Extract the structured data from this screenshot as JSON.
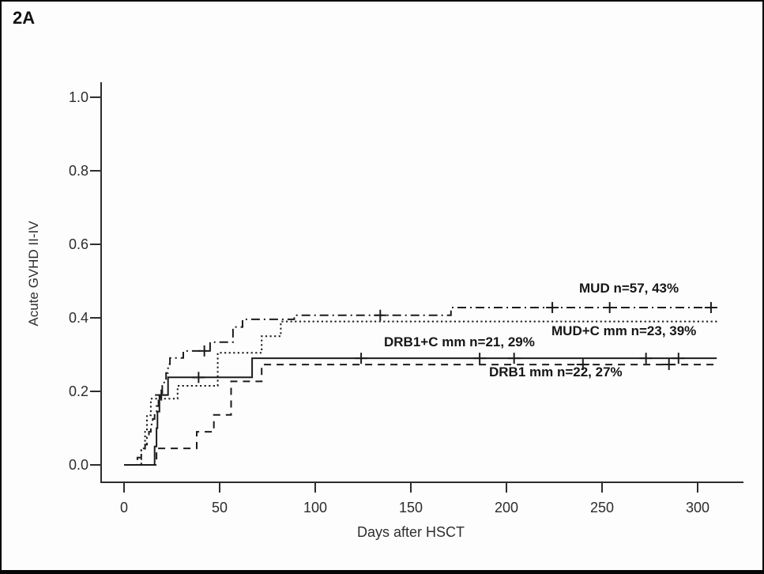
{
  "page": {
    "panel_label": "2A"
  },
  "chart_data": {
    "type": "line",
    "subtype": "kaplan-meier-cumulative-incidence",
    "title": "",
    "xlabel": "Days after HSCT",
    "ylabel": "Acute GVHD II-IV",
    "xlim": [
      0,
      313
    ],
    "ylim": [
      0.0,
      1.0
    ],
    "x_ticks": [
      0,
      50,
      100,
      150,
      200,
      250,
      300
    ],
    "x_tick_labels": [
      "0",
      "50",
      "100",
      "150",
      "200",
      "250",
      "300"
    ],
    "y_ticks": [
      0.0,
      0.2,
      0.4,
      0.6,
      0.8,
      1.0
    ],
    "y_tick_labels": [
      "0.0",
      "0.2",
      "0.4",
      "0.6",
      "0.8",
      "1.0"
    ],
    "grid": false,
    "legend_position": "inline-labels",
    "line_color": "#1c1c1c",
    "series": [
      {
        "name": "MUD",
        "label": "MUD n=57, 43%",
        "n": 57,
        "final_pct": 43,
        "line_style": "dash-dot",
        "end_day": 309,
        "steps": [
          [
            7,
            0.02
          ],
          [
            9,
            0.04
          ],
          [
            11,
            0.055
          ],
          [
            12,
            0.075
          ],
          [
            13,
            0.09
          ],
          [
            14,
            0.11
          ],
          [
            15,
            0.125
          ],
          [
            16,
            0.145
          ],
          [
            17,
            0.16
          ],
          [
            18,
            0.18
          ],
          [
            19,
            0.195
          ],
          [
            20,
            0.215
          ],
          [
            21,
            0.23
          ],
          [
            22,
            0.25
          ],
          [
            23,
            0.274
          ],
          [
            24,
            0.291
          ],
          [
            31,
            0.31
          ],
          [
            45,
            0.334
          ],
          [
            57,
            0.375
          ],
          [
            62,
            0.396
          ],
          [
            89,
            0.407
          ],
          [
            171,
            0.428
          ]
        ],
        "censor_marks": [
          [
            42,
            0.31
          ],
          [
            134,
            0.407
          ],
          [
            224,
            0.428
          ],
          [
            254,
            0.428
          ],
          [
            307,
            0.428
          ]
        ]
      },
      {
        "name": "MUD+C mm",
        "label": "MUD+C mm n=23, 39%",
        "n": 23,
        "final_pct": 39,
        "line_style": "dotted",
        "end_day": 311,
        "steps": [
          [
            9,
            0.045
          ],
          [
            11,
            0.09
          ],
          [
            12,
            0.135
          ],
          [
            14,
            0.18
          ],
          [
            28,
            0.215
          ],
          [
            49,
            0.305
          ],
          [
            72,
            0.35
          ],
          [
            82,
            0.39
          ]
        ],
        "censor_marks": []
      },
      {
        "name": "DRB1+C mm",
        "label": "DRB1+C mm n=21, 29%",
        "n": 21,
        "final_pct": 29,
        "line_style": "solid",
        "end_day": 310,
        "steps": [
          [
            16,
            0.05
          ],
          [
            17,
            0.1
          ],
          [
            17.5,
            0.145
          ],
          [
            18.5,
            0.19
          ],
          [
            23,
            0.238
          ],
          [
            67,
            0.29
          ]
        ],
        "censor_marks": [
          [
            19.5,
            0.19
          ],
          [
            39,
            0.238
          ],
          [
            124,
            0.29
          ],
          [
            186,
            0.29
          ],
          [
            204,
            0.29
          ],
          [
            273,
            0.29
          ],
          [
            290,
            0.29
          ]
        ]
      },
      {
        "name": "DRB1 mm",
        "label": "DRB1 mm n=22, 27%",
        "n": 22,
        "final_pct": 27,
        "line_style": "dashed",
        "end_day": 310,
        "steps": [
          [
            17,
            0.045
          ],
          [
            38,
            0.09
          ],
          [
            47,
            0.136
          ],
          [
            56,
            0.227
          ],
          [
            72,
            0.273
          ]
        ],
        "censor_marks": [
          [
            240,
            0.273
          ],
          [
            285,
            0.273
          ]
        ]
      }
    ]
  }
}
